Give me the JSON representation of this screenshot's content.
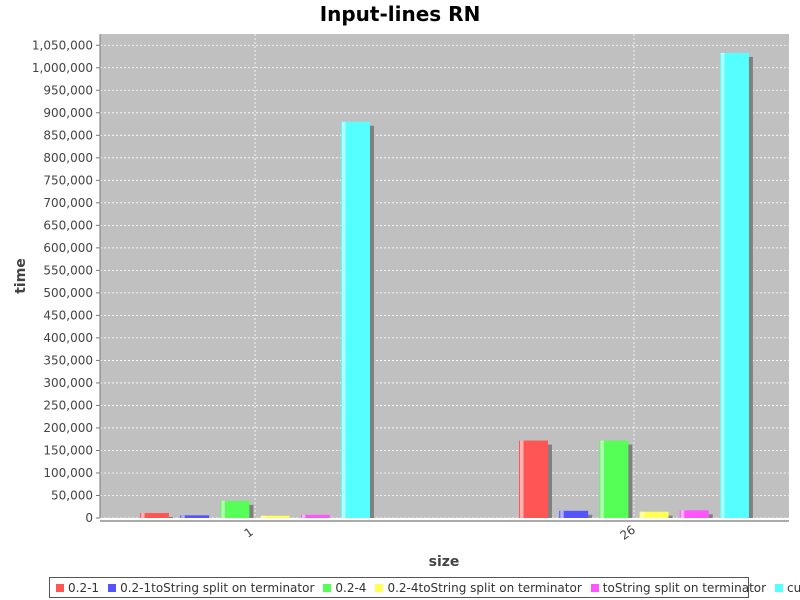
{
  "chart_data": {
    "type": "bar",
    "title": "Input-lines RN",
    "xlabel": "size",
    "ylabel": "time",
    "categories": [
      "1",
      "26"
    ],
    "ylim": [
      0,
      1075000
    ],
    "yticks": [
      0,
      50000,
      100000,
      150000,
      200000,
      250000,
      300000,
      350000,
      400000,
      450000,
      500000,
      550000,
      600000,
      650000,
      700000,
      750000,
      800000,
      850000,
      900000,
      950000,
      1000000,
      1050000
    ],
    "ytick_labels": [
      "0",
      "50,000",
      "100,000",
      "150,000",
      "200,000",
      "250,000",
      "300,000",
      "350,000",
      "400,000",
      "450,000",
      "500,000",
      "550,000",
      "600,000",
      "650,000",
      "700,000",
      "750,000",
      "800,000",
      "850,000",
      "900,000",
      "950,000",
      "1,000,000",
      "1,050,000"
    ],
    "grid": true,
    "legend_position": "bottom",
    "series": [
      {
        "name": "0.2-1",
        "color": "#ff5555",
        "values": [
          11000,
          172000
        ]
      },
      {
        "name": "0.2-1toString split on terminator",
        "color": "#5555ff",
        "values": [
          6000,
          16000
        ]
      },
      {
        "name": "0.2-4",
        "color": "#55ff55",
        "values": [
          38000,
          172000
        ]
      },
      {
        "name": "0.2-4toString split on terminator",
        "color": "#ffff55",
        "values": [
          5000,
          14000
        ]
      },
      {
        "name": "toString split on terminator",
        "color": "#ff55ff",
        "values": [
          7000,
          17000
        ]
      },
      {
        "name": "current",
        "color": "#55ffff",
        "values": [
          880000,
          1033000
        ]
      }
    ]
  }
}
